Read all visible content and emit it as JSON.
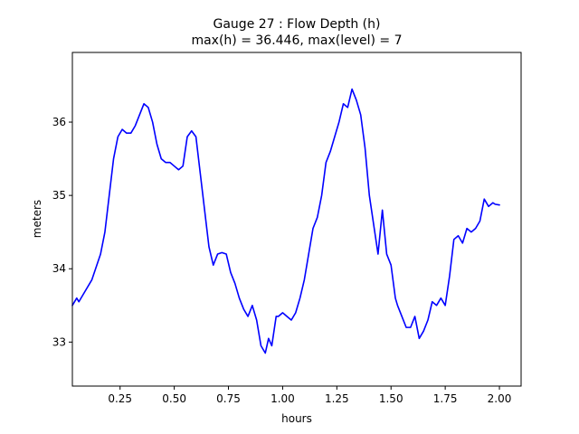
{
  "chart_data": {
    "type": "line",
    "title_line1": "Gauge 27 : Flow Depth (h)",
    "title_line2": "max(h) =  36.446,    max(level) = 7",
    "xlabel": "hours",
    "ylabel": "meters",
    "xlim": [
      0.03,
      2.1
    ],
    "ylim": [
      32.4,
      36.95
    ],
    "xticks": [
      {
        "value": 0.25,
        "label": "0.25"
      },
      {
        "value": 0.5,
        "label": "0.50"
      },
      {
        "value": 0.75,
        "label": "0.75"
      },
      {
        "value": 1.0,
        "label": "1.00"
      },
      {
        "value": 1.25,
        "label": "1.25"
      },
      {
        "value": 1.5,
        "label": "1.50"
      },
      {
        "value": 1.75,
        "label": "1.75"
      },
      {
        "value": 2.0,
        "label": "2.00"
      }
    ],
    "yticks": [
      {
        "value": 33,
        "label": "33"
      },
      {
        "value": 34,
        "label": "34"
      },
      {
        "value": 35,
        "label": "35"
      },
      {
        "value": 36,
        "label": "36"
      }
    ],
    "grid": false,
    "series": [
      {
        "color": "#0000ff",
        "x": [
          0.03,
          0.05,
          0.06,
          0.08,
          0.12,
          0.16,
          0.18,
          0.2,
          0.22,
          0.24,
          0.26,
          0.28,
          0.3,
          0.32,
          0.34,
          0.36,
          0.38,
          0.4,
          0.42,
          0.44,
          0.46,
          0.48,
          0.5,
          0.52,
          0.54,
          0.56,
          0.58,
          0.6,
          0.62,
          0.64,
          0.66,
          0.68,
          0.7,
          0.72,
          0.74,
          0.76,
          0.78,
          0.8,
          0.82,
          0.84,
          0.86,
          0.88,
          0.9,
          0.92,
          0.935,
          0.95,
          0.97,
          0.98,
          1.0,
          1.02,
          1.04,
          1.06,
          1.08,
          1.1,
          1.12,
          1.14,
          1.16,
          1.18,
          1.2,
          1.22,
          1.24,
          1.26,
          1.28,
          1.3,
          1.32,
          1.34,
          1.36,
          1.38,
          1.4,
          1.42,
          1.44,
          1.46,
          1.48,
          1.5,
          1.52,
          1.53,
          1.55,
          1.57,
          1.59,
          1.61,
          1.63,
          1.65,
          1.67,
          1.69,
          1.71,
          1.73,
          1.75,
          1.77,
          1.79,
          1.81,
          1.83,
          1.85,
          1.87,
          1.89,
          1.91,
          1.93,
          1.95,
          1.97,
          1.98,
          2.0
        ],
        "y": [
          33.5,
          33.6,
          33.55,
          33.65,
          33.85,
          34.2,
          34.5,
          35.0,
          35.5,
          35.8,
          35.9,
          35.85,
          35.85,
          35.95,
          36.1,
          36.25,
          36.2,
          36.0,
          35.7,
          35.5,
          35.45,
          35.45,
          35.4,
          35.35,
          35.4,
          35.8,
          35.88,
          35.8,
          35.3,
          34.8,
          34.3,
          34.05,
          34.2,
          34.22,
          34.2,
          33.95,
          33.8,
          33.6,
          33.45,
          33.35,
          33.5,
          33.3,
          32.95,
          32.85,
          33.05,
          32.95,
          33.35,
          33.35,
          33.4,
          33.35,
          33.3,
          33.4,
          33.6,
          33.85,
          34.2,
          34.55,
          34.7,
          35.0,
          35.45,
          35.6,
          35.8,
          36.0,
          36.25,
          36.2,
          36.45,
          36.3,
          36.1,
          35.65,
          35.0,
          34.6,
          34.2,
          34.8,
          34.2,
          34.05,
          33.6,
          33.5,
          33.35,
          33.2,
          33.2,
          33.35,
          33.05,
          33.15,
          33.3,
          33.55,
          33.5,
          33.6,
          33.5,
          33.9,
          34.4,
          34.45,
          34.35,
          34.55,
          34.5,
          34.55,
          34.65,
          34.95,
          34.85,
          34.9,
          34.88,
          34.87
        ]
      }
    ]
  }
}
